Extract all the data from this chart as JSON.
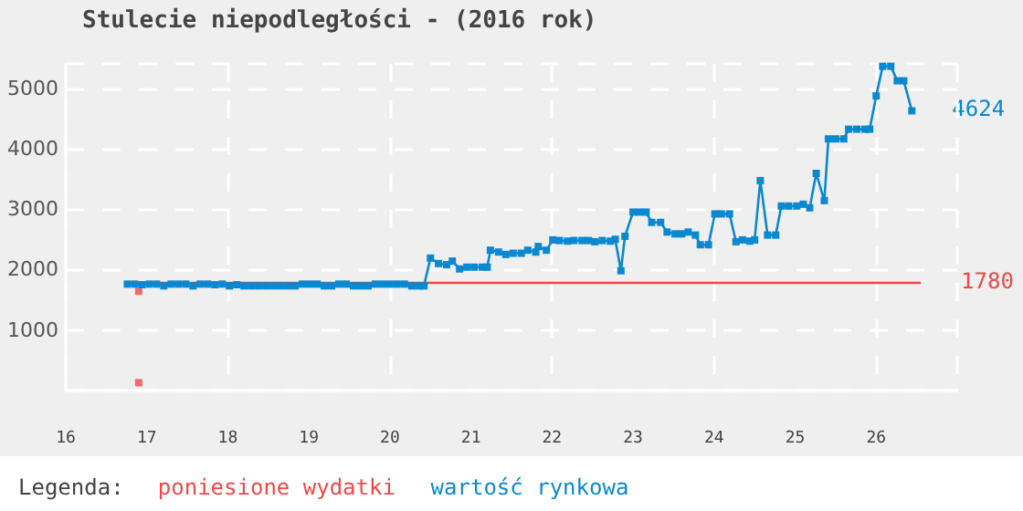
{
  "chart_data": {
    "type": "line",
    "title": "Stulecie niepodległości - (2016 rok)",
    "legend_title": "Legenda:",
    "legend": "bottom",
    "grid": true,
    "marker": "square",
    "xlim": [
      16,
      27
    ],
    "xticks": [
      16,
      17,
      18,
      19,
      20,
      21,
      22,
      23,
      24,
      25,
      26
    ],
    "ylim": [
      0,
      5400
    ],
    "yticks": [
      1000,
      2000,
      3000,
      4000,
      5000
    ],
    "annotations": [
      {
        "text": "4624",
        "x": 26.44,
        "y": 4624
      },
      {
        "text": "1780",
        "x": 26.55,
        "y": 1780
      }
    ],
    "series": [
      {
        "name": "poniesione wydatki",
        "type": "scatter",
        "color": "#f04848",
        "x": [
          16.9,
          16.9
        ],
        "values": [
          130,
          1640
        ]
      },
      {
        "name": "wartość rynkowa",
        "color": "#0a88d0",
        "x": [
          16.76,
          16.85,
          16.94,
          17.03,
          17.12,
          17.21,
          17.3,
          17.39,
          17.48,
          17.57,
          17.66,
          17.75,
          17.84,
          17.93,
          18.02,
          18.11,
          18.2,
          18.29,
          18.38,
          18.47,
          18.56,
          18.65,
          18.74,
          18.83,
          18.92,
          19.01,
          19.1,
          19.19,
          19.28,
          19.37,
          19.46,
          19.55,
          19.64,
          19.73,
          19.82,
          19.91,
          20.0,
          20.09,
          20.18,
          20.27,
          20.36,
          20.42,
          20.5,
          20.6,
          20.7,
          20.77,
          20.86,
          20.95,
          21.04,
          21.14,
          21.2,
          21.24,
          21.34,
          21.43,
          21.52,
          21.62,
          21.7,
          21.8,
          21.83,
          21.93,
          22.01,
          22.09,
          22.19,
          22.27,
          22.37,
          22.45,
          22.53,
          22.62,
          22.72,
          22.78,
          22.85,
          22.9,
          23.0,
          23.08,
          23.16,
          23.23,
          23.34,
          23.42,
          23.52,
          23.6,
          23.68,
          23.77,
          23.83,
          23.93,
          24.01,
          24.09,
          24.19,
          24.27,
          24.35,
          24.44,
          24.5,
          24.57,
          24.66,
          24.76,
          24.83,
          24.92,
          25.02,
          25.1,
          25.18,
          25.26,
          25.36,
          25.41,
          25.5,
          25.6,
          25.66,
          25.76,
          25.86,
          25.92,
          26.0,
          26.08,
          26.18,
          26.26,
          26.34,
          26.44
        ],
        "values": [
          1760,
          1760,
          1750,
          1760,
          1760,
          1730,
          1760,
          1760,
          1760,
          1730,
          1760,
          1760,
          1750,
          1760,
          1730,
          1750,
          1730,
          1730,
          1730,
          1730,
          1730,
          1730,
          1730,
          1730,
          1760,
          1760,
          1760,
          1730,
          1730,
          1760,
          1760,
          1730,
          1730,
          1730,
          1760,
          1760,
          1760,
          1760,
          1760,
          1730,
          1730,
          1730,
          2190,
          2100,
          2080,
          2140,
          2010,
          2040,
          2040,
          2040,
          2040,
          2320,
          2290,
          2250,
          2270,
          2270,
          2320,
          2290,
          2380,
          2320,
          2490,
          2480,
          2470,
          2480,
          2480,
          2480,
          2460,
          2480,
          2470,
          2500,
          1980,
          2550,
          2950,
          2950,
          2950,
          2780,
          2780,
          2620,
          2590,
          2590,
          2620,
          2570,
          2410,
          2410,
          2920,
          2920,
          2920,
          2460,
          2490,
          2470,
          2490,
          3470,
          2570,
          2570,
          3050,
          3050,
          3050,
          3080,
          3020,
          3590,
          3140,
          4160,
          4160,
          4160,
          4320,
          4320,
          4320,
          4320,
          4870,
          5360,
          5360,
          5120,
          5120,
          4624
        ]
      },
      {
        "type": "line",
        "color": "#f04848",
        "marker": "none",
        "x": [
          16.8,
          26.55
        ],
        "values": [
          1780,
          1780
        ]
      }
    ]
  }
}
